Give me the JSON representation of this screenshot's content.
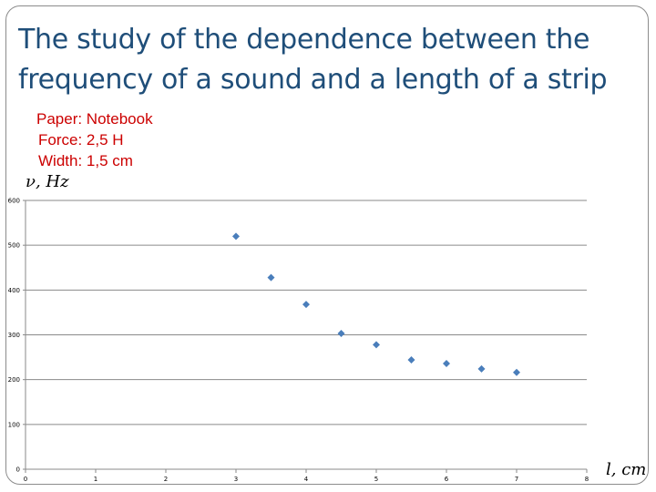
{
  "title": {
    "line1": "The study of the dependence between the",
    "line2": "frequency of a sound and a length of a strip"
  },
  "params": [
    "Paper: Notebook",
    "Force: 2,5 H",
    "Width: 1,5 cm"
  ],
  "chart_data": {
    "type": "scatter",
    "title": "",
    "xlabel": "l, cm",
    "ylabel": "ν, Hz",
    "xlim": [
      0,
      8
    ],
    "ylim": [
      0,
      600
    ],
    "xticks": [
      0,
      1,
      2,
      3,
      4,
      5,
      6,
      7,
      8
    ],
    "yticks": [
      0,
      100,
      200,
      300,
      400,
      500,
      600
    ],
    "grid": "horizontal",
    "marker": "diamond",
    "color": "#4a7ebb",
    "series": [
      {
        "x": [
          3,
          3.5,
          4,
          4.5,
          5,
          5.5,
          6,
          6.5,
          7
        ],
        "y": [
          520,
          428,
          368,
          303,
          278,
          244,
          236,
          224,
          216
        ]
      }
    ]
  }
}
